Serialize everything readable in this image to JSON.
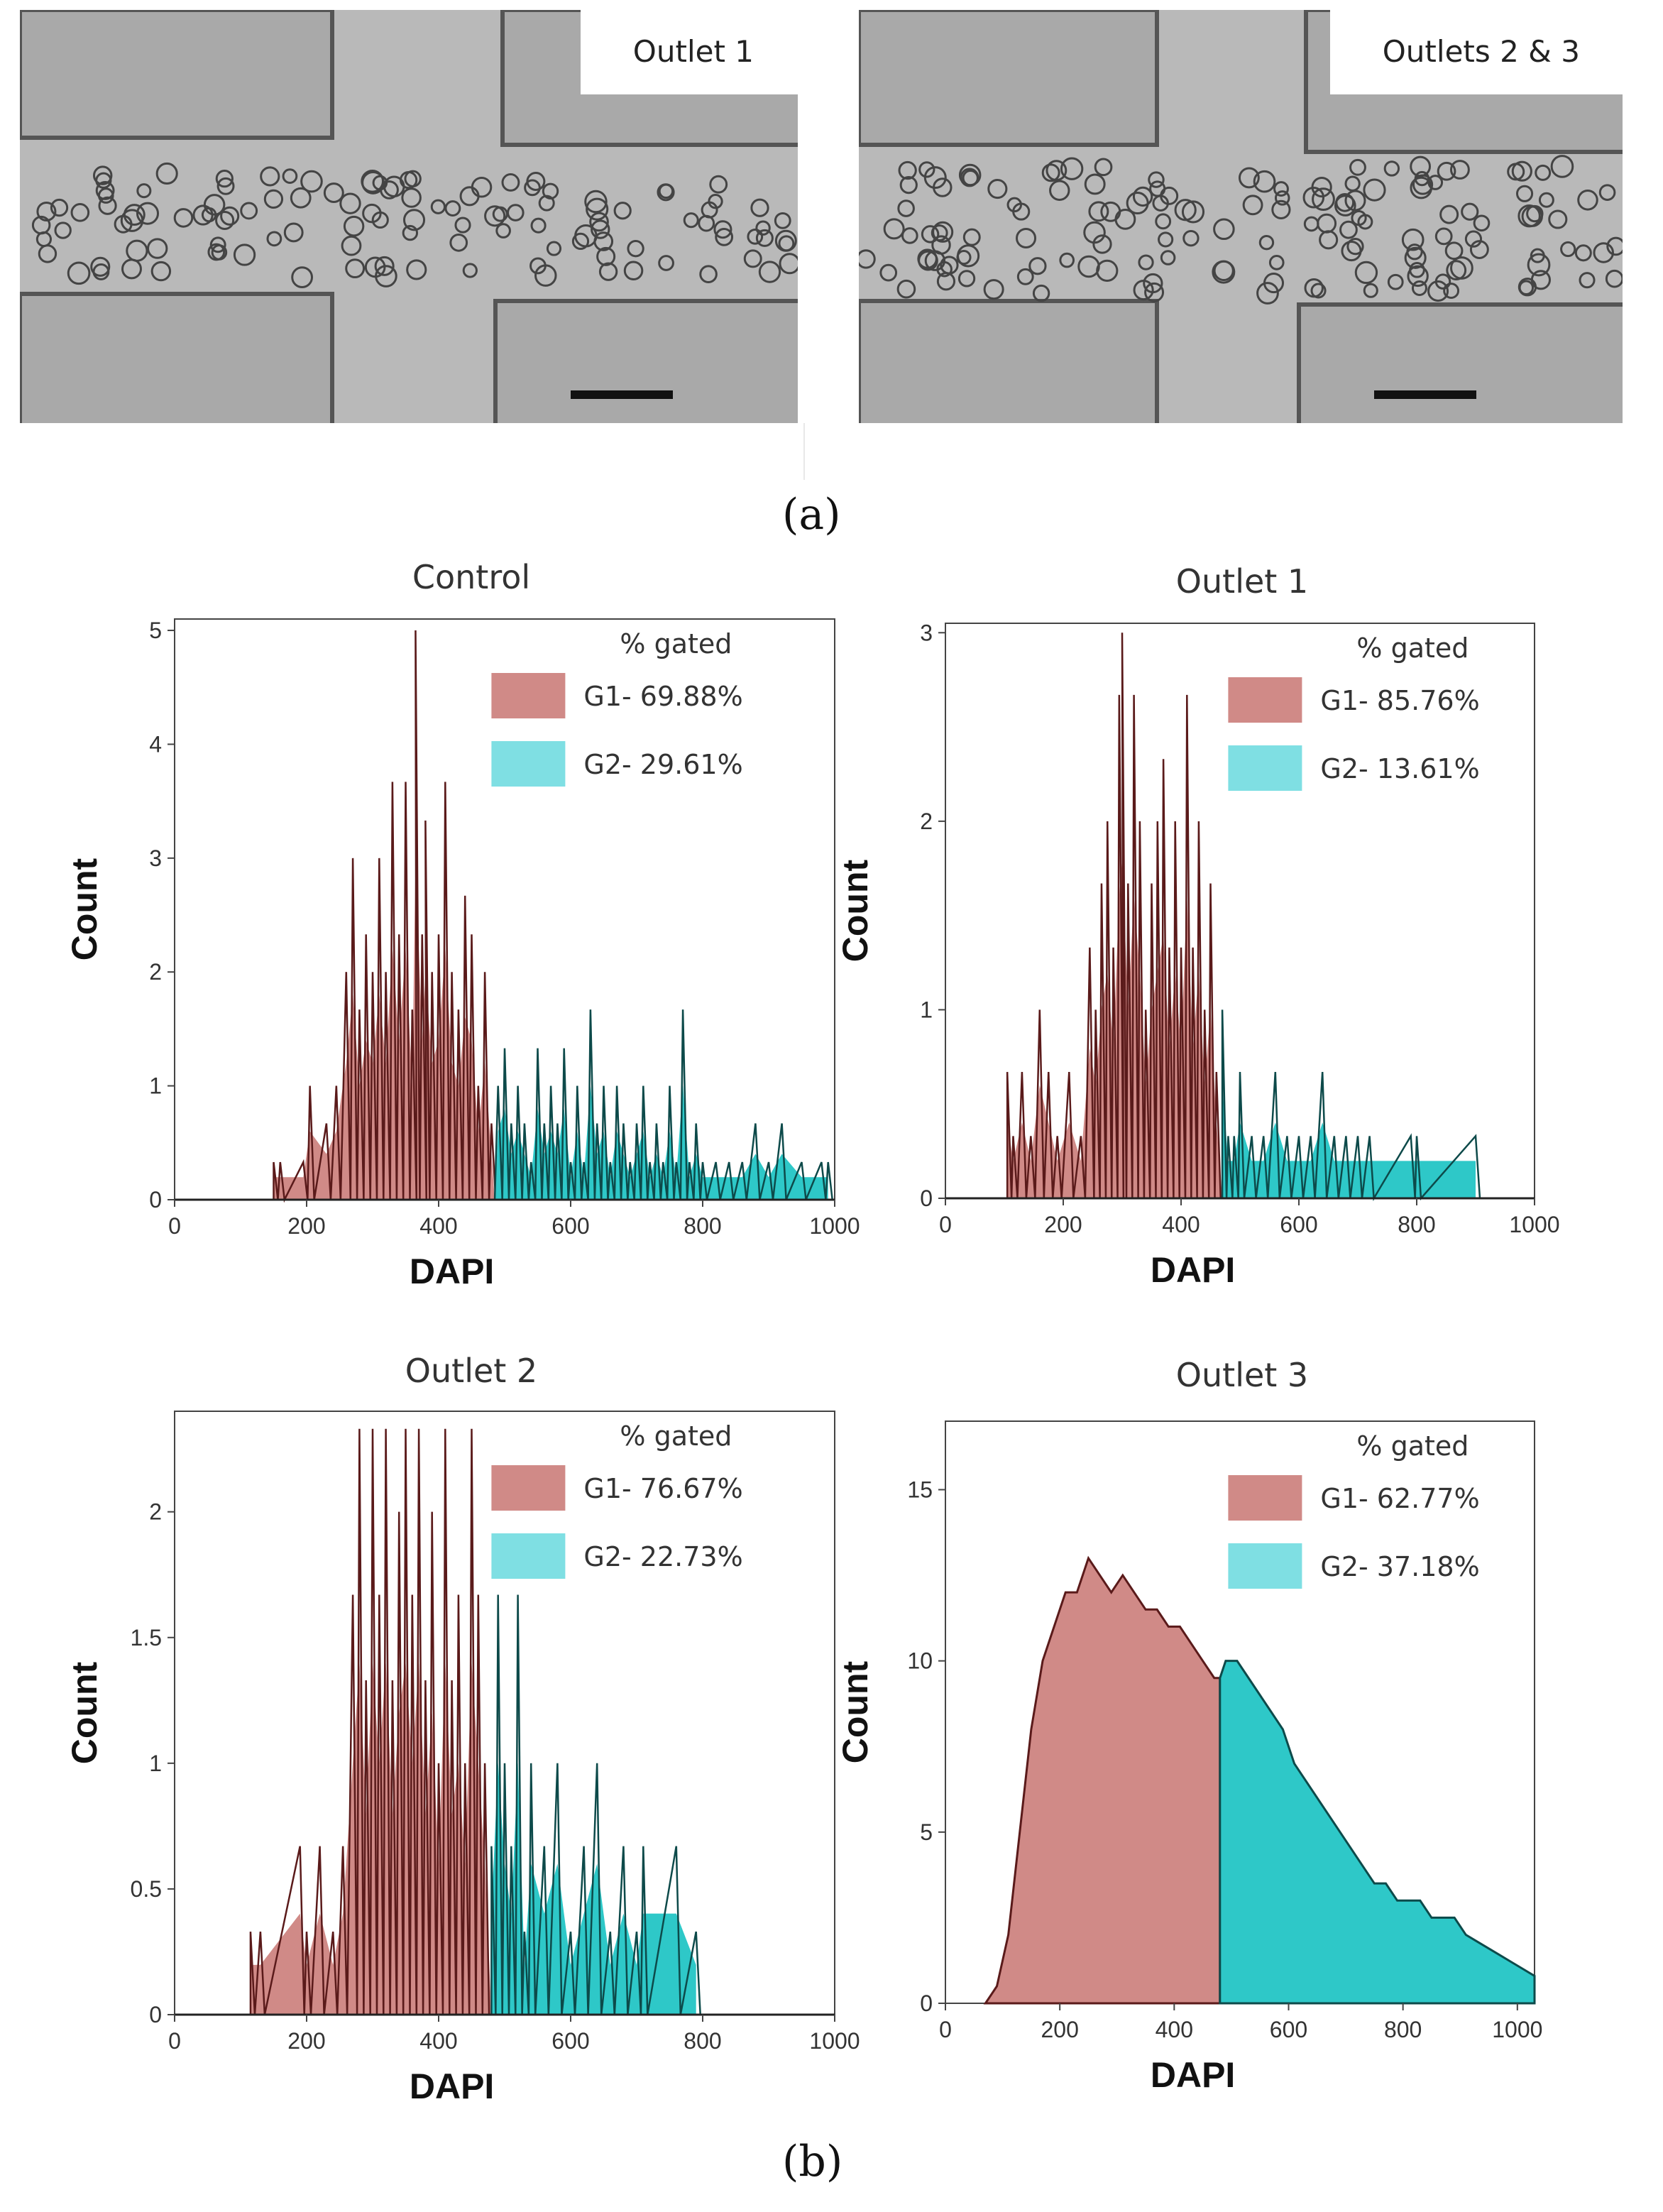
{
  "micrographs": [
    {
      "label": "Outlet 1"
    },
    {
      "label": "Outlets 2 & 3"
    }
  ],
  "panel_labels": {
    "a": "(a)",
    "b": "(b)"
  },
  "colors": {
    "g1": "#d08a87",
    "g2": "#2ec8c8",
    "trace": "#1a1a1a",
    "g1_trace": "#5a1a1a",
    "g2_trace": "#0d4a4a"
  },
  "chart_data": [
    {
      "type": "bar",
      "title": "Control",
      "xlabel": "DAPI",
      "ylabel": "Count",
      "xlim": [
        0,
        1000
      ],
      "ylim": [
        0,
        5.1
      ],
      "xticks": [
        "0",
        "200",
        "400",
        "600",
        "800",
        "1000"
      ],
      "yticks": [
        "0",
        "1",
        "2",
        "3",
        "4",
        "5"
      ],
      "gate_split": 485,
      "legend": {
        "heading": "% gated",
        "entries": [
          {
            "name": "G1- 69.88%"
          },
          {
            "name": "G2- 29.61%"
          }
        ]
      },
      "series_note": "histogram",
      "x": [
        150,
        160,
        195,
        205,
        230,
        245,
        260,
        270,
        280,
        290,
        300,
        310,
        320,
        330,
        340,
        350,
        360,
        365,
        375,
        380,
        390,
        400,
        410,
        420,
        430,
        440,
        450,
        460,
        470,
        480,
        490,
        500,
        510,
        520,
        530,
        540,
        550,
        560,
        570,
        580,
        590,
        600,
        610,
        620,
        630,
        640,
        650,
        660,
        670,
        680,
        690,
        700,
        710,
        720,
        730,
        740,
        750,
        760,
        770,
        780,
        790,
        800,
        820,
        840,
        860,
        880,
        900,
        920,
        950,
        980,
        990
      ],
      "y": [
        0.33,
        0.33,
        0.33,
        1,
        0.67,
        1,
        2,
        3,
        1.67,
        2.33,
        2,
        3,
        2,
        3.67,
        2.33,
        3.67,
        1.67,
        5,
        2.33,
        3.33,
        2,
        2.33,
        3.67,
        2,
        1.67,
        2.67,
        2.33,
        1,
        2,
        0.67,
        1,
        1.33,
        0.67,
        1,
        0.67,
        0.33,
        1.33,
        0.67,
        1,
        0.67,
        1.33,
        0.33,
        1,
        0.33,
        1.67,
        0.67,
        1,
        0.33,
        1,
        0.67,
        0.33,
        0.67,
        1,
        0.33,
        0.67,
        0.33,
        1,
        0.33,
        1.67,
        0.33,
        0.67,
        0.33,
        0.33,
        0.33,
        0.33,
        0.67,
        0.33,
        0.67,
        0.33,
        0.33,
        0.33
      ]
    },
    {
      "type": "bar",
      "title": "Outlet 1",
      "xlabel": "DAPI",
      "ylabel": "Count",
      "xlim": [
        0,
        1000
      ],
      "ylim": [
        0,
        3.05
      ],
      "xticks": [
        "0",
        "200",
        "400",
        "600",
        "800",
        "1000"
      ],
      "yticks": [
        "0",
        "1",
        "2",
        "3"
      ],
      "gate_split": 470,
      "legend": {
        "heading": "% gated",
        "entries": [
          {
            "name": "G1- 85.76%"
          },
          {
            "name": "G2- 13.61%"
          }
        ]
      },
      "series_note": "histogram",
      "x": [
        105,
        115,
        130,
        145,
        160,
        175,
        190,
        210,
        230,
        245,
        255,
        265,
        275,
        285,
        295,
        300,
        310,
        320,
        330,
        340,
        350,
        360,
        370,
        380,
        390,
        400,
        410,
        420,
        430,
        440,
        450,
        460,
        470,
        480,
        490,
        500,
        520,
        540,
        560,
        580,
        600,
        620,
        640,
        660,
        680,
        700,
        720,
        790,
        800,
        900
      ],
      "y": [
        0.67,
        0.33,
        0.67,
        0.33,
        1,
        0.67,
        0.33,
        0.67,
        0.33,
        1.33,
        1,
        1.67,
        2,
        1.33,
        2.67,
        3,
        1.67,
        2.67,
        2,
        1,
        1.67,
        2,
        2.33,
        1.33,
        2,
        1.33,
        2.67,
        1.33,
        2,
        1,
        1.67,
        0.67,
        1,
        0.33,
        0.33,
        0.67,
        0.33,
        0.33,
        0.67,
        0.33,
        0.33,
        0.33,
        0.67,
        0.33,
        0.33,
        0.33,
        0.33,
        0.33,
        0.33,
        0.33
      ]
    },
    {
      "type": "bar",
      "title": "Outlet 2",
      "xlabel": "DAPI",
      "ylabel": "Count",
      "xlim": [
        0,
        1000
      ],
      "ylim": [
        0,
        2.4
      ],
      "xticks": [
        "0",
        "200",
        "400",
        "600",
        "800",
        "1000"
      ],
      "yticks": [
        "0",
        "0.5",
        "1",
        "1.5",
        "2"
      ],
      "gate_split": 480,
      "legend": {
        "heading": "% gated",
        "entries": [
          {
            "name": "G1- 76.67%"
          },
          {
            "name": "G2- 22.73%"
          }
        ]
      },
      "series_note": "histogram",
      "x": [
        115,
        130,
        190,
        200,
        220,
        240,
        255,
        270,
        280,
        290,
        300,
        310,
        320,
        330,
        340,
        350,
        360,
        370,
        380,
        390,
        400,
        410,
        420,
        430,
        440,
        450,
        460,
        470,
        480,
        490,
        500,
        510,
        520,
        530,
        540,
        560,
        580,
        600,
        620,
        640,
        660,
        680,
        700,
        710,
        760,
        790
      ],
      "y": [
        0.33,
        0.33,
        0.67,
        0.33,
        0.67,
        0.33,
        0.67,
        1.67,
        2.33,
        1.33,
        2.33,
        1.67,
        2.33,
        1.33,
        2,
        2.33,
        1.67,
        2.33,
        1.33,
        2,
        1,
        2.33,
        1.33,
        1.67,
        1,
        2.33,
        1.67,
        1,
        0.67,
        1.67,
        1,
        0.67,
        1.67,
        0.33,
        1,
        0.67,
        1,
        0.33,
        0.67,
        1,
        0.33,
        0.67,
        0.33,
        0.67,
        0.67,
        0.33
      ]
    },
    {
      "type": "area",
      "title": "Outlet 3",
      "xlabel": "DAPI",
      "ylabel": "Count",
      "xlim": [
        0,
        1030
      ],
      "ylim": [
        0,
        17
      ],
      "xticks": [
        "0",
        "200",
        "400",
        "600",
        "800",
        "1000"
      ],
      "yticks": [
        "0",
        "5",
        "10",
        "15"
      ],
      "gate_split": 480,
      "legend": {
        "heading": "% gated",
        "entries": [
          {
            "name": "G1- 62.77%"
          },
          {
            "name": "G2- 37.18%"
          }
        ]
      },
      "series_note": "dense histogram (envelope)",
      "x": [
        70,
        90,
        110,
        130,
        150,
        170,
        190,
        210,
        230,
        250,
        270,
        290,
        310,
        330,
        350,
        370,
        390,
        410,
        430,
        450,
        470,
        490,
        510,
        530,
        550,
        570,
        590,
        610,
        630,
        650,
        670,
        690,
        710,
        730,
        750,
        770,
        790,
        810,
        830,
        850,
        870,
        890,
        910,
        930,
        950,
        970,
        990,
        1010,
        1030
      ],
      "y": [
        0,
        0.5,
        2,
        5,
        8,
        10,
        11,
        12,
        12,
        13,
        12.5,
        12,
        12.5,
        12,
        11.5,
        11.5,
        11,
        11,
        10.5,
        10,
        9.5,
        10,
        10,
        9.5,
        9,
        8.5,
        8,
        7,
        6.5,
        6,
        5.5,
        5,
        4.5,
        4,
        3.5,
        3.5,
        3,
        3,
        3,
        2.5,
        2.5,
        2.5,
        2,
        1.8,
        1.6,
        1.4,
        1.2,
        1,
        0.8
      ]
    }
  ]
}
